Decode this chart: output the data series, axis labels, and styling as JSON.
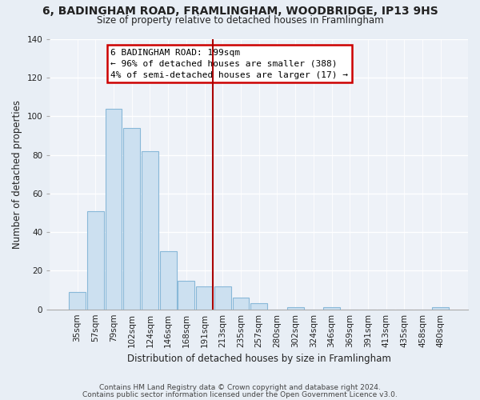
{
  "title": "6, BADINGHAM ROAD, FRAMLINGHAM, WOODBRIDGE, IP13 9HS",
  "subtitle": "Size of property relative to detached houses in Framlingham",
  "xlabel": "Distribution of detached houses by size in Framlingham",
  "ylabel": "Number of detached properties",
  "bar_labels": [
    "35sqm",
    "57sqm",
    "79sqm",
    "102sqm",
    "124sqm",
    "146sqm",
    "168sqm",
    "191sqm",
    "213sqm",
    "235sqm",
    "257sqm",
    "280sqm",
    "302sqm",
    "324sqm",
    "346sqm",
    "369sqm",
    "391sqm",
    "413sqm",
    "435sqm",
    "458sqm",
    "480sqm"
  ],
  "bar_values": [
    9,
    51,
    104,
    94,
    82,
    30,
    15,
    12,
    12,
    6,
    3,
    0,
    1,
    0,
    1,
    0,
    0,
    0,
    0,
    0,
    1
  ],
  "bar_color": "#cce0f0",
  "bar_edge_color": "#88b8d8",
  "vline_color": "#aa0000",
  "annotation_title": "6 BADINGHAM ROAD: 199sqm",
  "annotation_line1": "← 96% of detached houses are smaller (388)",
  "annotation_line2": "4% of semi-detached houses are larger (17) →",
  "annotation_box_color": "#ffffff",
  "annotation_box_edge": "#cc0000",
  "ylim": [
    0,
    140
  ],
  "yticks": [
    0,
    20,
    40,
    60,
    80,
    100,
    120,
    140
  ],
  "footnote1": "Contains HM Land Registry data © Crown copyright and database right 2024.",
  "footnote2": "Contains public sector information licensed under the Open Government Licence v3.0.",
  "bg_color": "#e8eef5",
  "plot_bg_color": "#eef2f8",
  "grid_color": "#ffffff",
  "text_color": "#222222"
}
